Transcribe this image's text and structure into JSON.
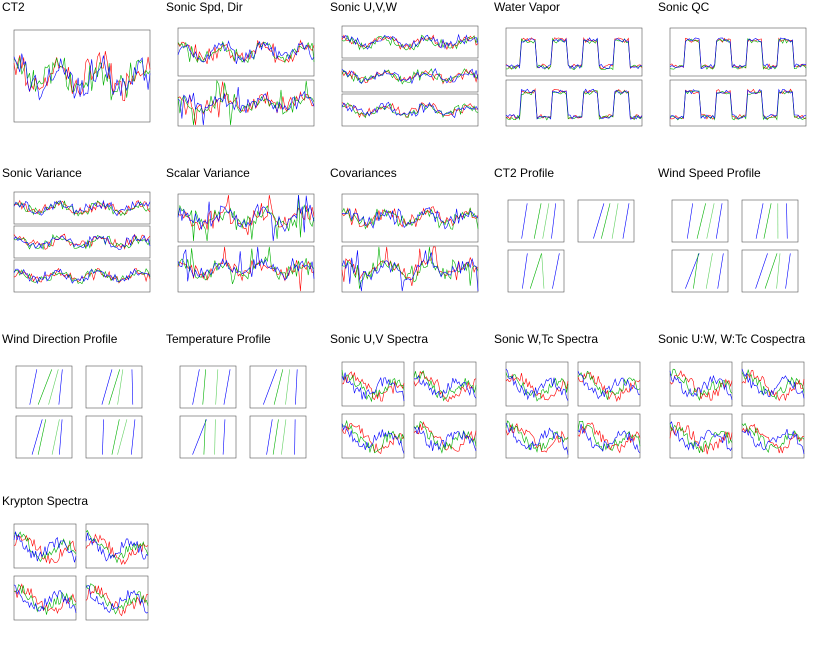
{
  "tiles": [
    {
      "title": "CT2",
      "kind": "single"
    },
    {
      "title": "Sonic Spd, Dir",
      "kind": "double"
    },
    {
      "title": "Sonic U,V,W",
      "kind": "triple"
    },
    {
      "title": "Water Vapor",
      "kind": "double-square"
    },
    {
      "title": "Sonic QC",
      "kind": "double-square"
    },
    {
      "title": "Sonic Variance",
      "kind": "triple"
    },
    {
      "title": "Scalar Variance",
      "kind": "double-spike"
    },
    {
      "title": "Covariances",
      "kind": "double"
    },
    {
      "title": "CT2 Profile",
      "kind": "profile3"
    },
    {
      "title": "Wind Speed Profile",
      "kind": "profile4"
    },
    {
      "title": "Wind Direction Profile",
      "kind": "profile4"
    },
    {
      "title": "Temperature Profile",
      "kind": "profile4"
    },
    {
      "title": "Sonic U,V Spectra",
      "kind": "spectra4"
    },
    {
      "title": "Sonic W,Tc Spectra",
      "kind": "spectra4"
    },
    {
      "title": "Sonic U:W, W:Tc Cospectra",
      "kind": "spectra4"
    },
    {
      "title": "Krypton Spectra",
      "kind": "spectra4"
    }
  ],
  "colors": {
    "red": "#ff0000",
    "green": "#00b000",
    "blue": "#0000ff",
    "frame": "#555555"
  }
}
